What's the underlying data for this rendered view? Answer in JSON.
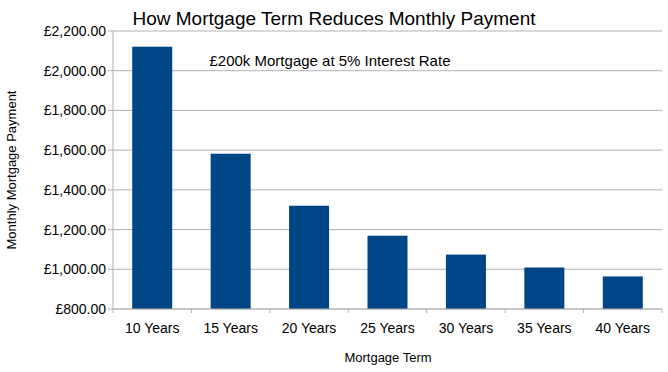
{
  "chart_data": {
    "type": "bar",
    "title": "How Mortgage Term Reduces Monthly Payment",
    "subtitle": "£200k Mortgage at 5% Interest Rate",
    "x_label": "Mortgage Term",
    "y_label": "Monthly Mortgage Payment",
    "categories": [
      "10 Years",
      "15 Years",
      "20 Years",
      "25 Years",
      "30 Years",
      "35 Years",
      "40 Years"
    ],
    "values": [
      2121,
      1582,
      1320,
      1169,
      1074,
      1009,
      964
    ],
    "color": "#004586",
    "ylim": [
      800,
      2200
    ],
    "yticks": [
      {
        "value": 800,
        "label": "£800.00"
      },
      {
        "value": 1000,
        "label": "£1,000.00"
      },
      {
        "value": 1200,
        "label": "£1,200.00"
      },
      {
        "value": 1400,
        "label": "£1,400.00"
      },
      {
        "value": 1600,
        "label": "£1,600.00"
      },
      {
        "value": 1800,
        "label": "£1,800.00"
      },
      {
        "value": 2000,
        "label": "£2,000.00"
      },
      {
        "value": 2200,
        "label": "£2,200.00"
      }
    ],
    "grid": true
  }
}
